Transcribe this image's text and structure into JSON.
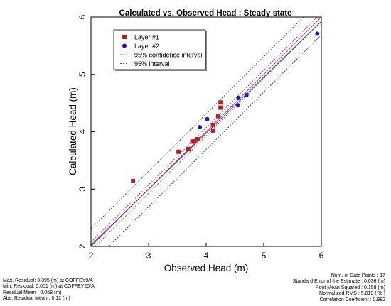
{
  "chart_data": {
    "type": "scatter",
    "title": "Calculated vs. Observed Head : Steady state",
    "xlabel": "Observed Head (m)",
    "ylabel": "Calculated Head (m)",
    "xlim": [
      2,
      6
    ],
    "ylim": [
      2,
      6
    ],
    "x_ticks": [
      "2",
      "3",
      "4",
      "5",
      "6"
    ],
    "y_ticks": [
      "2",
      "3",
      "4",
      "5",
      "6"
    ],
    "grid": false,
    "legend_position": "top-left",
    "series": [
      {
        "name": "Layer #1",
        "marker": "square",
        "color": "#b22222",
        "points": [
          [
            2.73,
            3.14
          ],
          [
            3.52,
            3.65
          ],
          [
            3.69,
            3.7
          ],
          [
            3.76,
            3.83
          ],
          [
            3.79,
            3.83
          ],
          [
            3.85,
            3.87
          ],
          [
            4.12,
            4.02
          ],
          [
            4.12,
            4.12
          ],
          [
            4.21,
            4.27
          ],
          [
            4.25,
            4.42
          ],
          [
            4.25,
            4.51
          ]
        ]
      },
      {
        "name": "Layer #2",
        "marker": "circle",
        "color": "#1a1aa6",
        "points": [
          [
            3.89,
            4.08
          ],
          [
            4.02,
            4.22
          ],
          [
            4.55,
            4.46
          ],
          [
            4.56,
            4.59
          ],
          [
            4.7,
            4.64
          ],
          [
            5.93,
            5.71
          ]
        ]
      }
    ],
    "reference_lines": [
      {
        "name": "95% confidence interval",
        "style": "dotted",
        "color": "#d04040",
        "offset": 0.072
      },
      {
        "name": "95% interval",
        "style": "dotted",
        "color": "#4040d0",
        "offset": 0.31
      }
    ],
    "regression": {
      "slope": 0.976,
      "intercept": 0.07,
      "color": "#4a3aa0"
    },
    "identity_color": "#b04060"
  },
  "stats_left": [
    "Max. Residual: 0.395 (m) at COFFEY9/A",
    "Min. Residual: 0.001 (m) at COFFEY20/A",
    "Residual Mean : 0.068 (m)",
    "Abs. Residual Mean : 0.12 (m)"
  ],
  "stats_right": [
    "Num. of Data Points : 17",
    "Standard Error of the Estimate : 0.036 (m)",
    "Root Mean Squared : 0.158 (m)",
    "Normalized RMS : 5.019 ( % )",
    "Correlation Coefficient : 0.982"
  ]
}
